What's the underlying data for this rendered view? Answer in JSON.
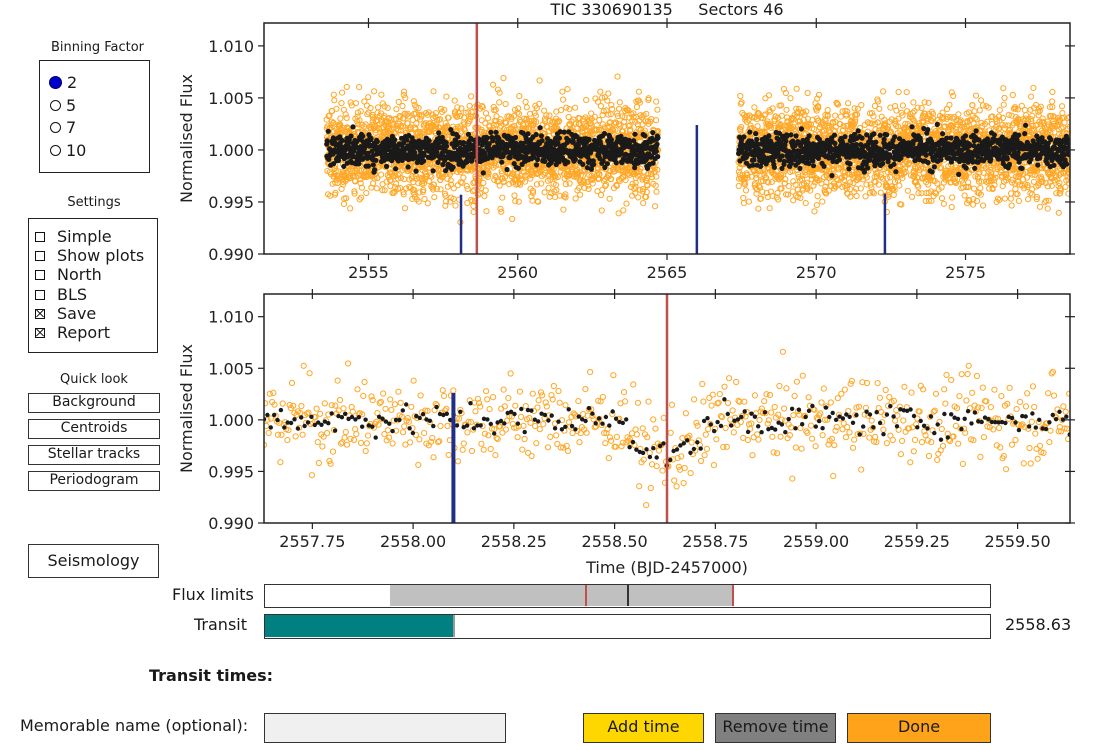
{
  "title": "TIC 330690135     Sectors 46",
  "binning": {
    "title": "Binning Factor",
    "options": [
      {
        "label": "2",
        "selected": true
      },
      {
        "label": "5",
        "selected": false
      },
      {
        "label": "7",
        "selected": false
      },
      {
        "label": "10",
        "selected": false
      }
    ]
  },
  "settings": {
    "title": "Settings",
    "options": [
      {
        "label": "Simple",
        "checked": false
      },
      {
        "label": "Show plots",
        "checked": false
      },
      {
        "label": "North",
        "checked": false
      },
      {
        "label": "BLS",
        "checked": false
      },
      {
        "label": "Save",
        "checked": true
      },
      {
        "label": "Report",
        "checked": true
      }
    ]
  },
  "quicklook": {
    "title": "Quick look",
    "buttons": [
      "Background",
      "Centroids",
      "Stellar tracks",
      "Periodogram"
    ]
  },
  "seismology_label": "Seismology",
  "flux_limits": {
    "label": "Flux limits",
    "low": 0.9944,
    "high": 1.0066,
    "mid": 1.0003
  },
  "transit": {
    "label": "Transit",
    "value_text": "2558.63",
    "fraction": 0.26
  },
  "transit_times_label": "Transit times:",
  "memorable_name": {
    "label": "Memorable name (optional):",
    "value": ""
  },
  "buttons": {
    "add": "Add time",
    "remove": "Remove time",
    "done": "Done"
  },
  "colors": {
    "raw": "#ffa726",
    "binned": "#1a1a1a",
    "marker_red": "#c0504d",
    "marker_blue": "#1f2f88",
    "transit_fill": "#008080",
    "add_btn": "#ffd700",
    "remove_btn": "#808080",
    "done_btn": "#ffa31a",
    "flux_sel": "#c0c0c0"
  },
  "chart_data": [
    {
      "type": "scatter",
      "title": "TIC 330690135     Sectors 46",
      "ylabel": "Normalised Flux",
      "xlim": [
        2551.5,
        2578.5
      ],
      "ylim": [
        0.99,
        1.0122
      ],
      "xticks": [
        2555,
        2560,
        2565,
        2570,
        2575
      ],
      "yticks": [
        0.99,
        0.995,
        1.0,
        1.005,
        1.01
      ],
      "segments": [
        [
          2553.6,
          2564.7
        ],
        [
          2567.4,
          2578.5
        ]
      ],
      "series": [
        {
          "kind": "raw",
          "scatter_sd": 0.0031
        },
        {
          "kind": "binned",
          "scatter_sd": 0.0011
        }
      ],
      "red_line_x": 2558.63,
      "blue_marks": [
        {
          "x": 2558.1,
          "top": 0.9957
        },
        {
          "x": 2566.0,
          "top": 1.0024
        },
        {
          "x": 2572.3,
          "top": 0.9958
        }
      ]
    },
    {
      "type": "scatter",
      "xlabel": "Time (BJD-2457000)",
      "ylabel": "Normalised Flux",
      "xlim": [
        2557.63,
        2559.63
      ],
      "ylim": [
        0.99,
        1.0122
      ],
      "xticks": [
        2557.75,
        2558.0,
        2558.25,
        2558.5,
        2558.75,
        2559.0,
        2559.25,
        2559.5
      ],
      "yticks": [
        0.99,
        0.995,
        1.0,
        1.005,
        1.01
      ],
      "series": [
        {
          "kind": "raw",
          "scatter_sd": 0.0029
        },
        {
          "kind": "binned",
          "scatter_sd": 0.0011
        }
      ],
      "transit": {
        "center": 2558.63,
        "half_width": 0.1,
        "depth": 0.0033
      },
      "red_line_x": 2558.63,
      "blue_marks": [
        {
          "x": 2558.1,
          "top": 1.0026
        }
      ]
    }
  ]
}
